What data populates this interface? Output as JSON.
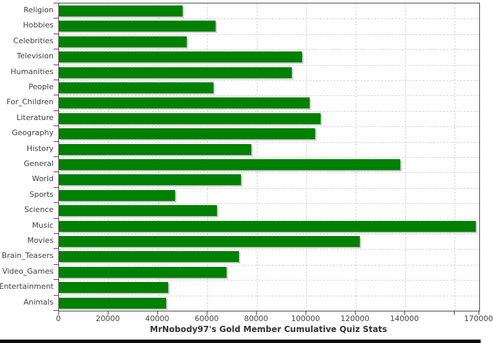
{
  "chart_data": {
    "type": "bar",
    "orientation": "horizontal",
    "title": "MrNobody97's Gold Member Cumulative Quiz Stats",
    "categories": [
      "Religion",
      "Hobbies",
      "Celebrities",
      "Television",
      "Humanities",
      "People",
      "For_Children",
      "Literature",
      "Geography",
      "History",
      "General",
      "World",
      "Sports",
      "Science",
      "Music",
      "Movies",
      "Brain_Teasers",
      "Video_Games",
      "Entertainment",
      "Animals"
    ],
    "values": [
      50000,
      63200,
      51600,
      98400,
      94200,
      62600,
      101300,
      105800,
      103700,
      77800,
      138100,
      73700,
      47000,
      63900,
      168600,
      121800,
      72800,
      67900,
      44100,
      43200
    ],
    "xlabel": "",
    "ylabel": "",
    "xlim": [
      0,
      170000
    ],
    "x_ticks": [
      {
        "value": 0,
        "label": "0"
      },
      {
        "value": 20000,
        "label": "20000"
      },
      {
        "value": 40000,
        "label": "40000"
      },
      {
        "value": 60000,
        "label": "60000"
      },
      {
        "value": 80000,
        "label": "80000"
      },
      {
        "value": 100000,
        "label": "100000"
      },
      {
        "value": 120000,
        "label": "120000"
      },
      {
        "value": 140000,
        "label": "140000"
      },
      {
        "value": 160000,
        "label": ""
      },
      {
        "value": 170000,
        "label": "170000"
      }
    ],
    "legend": "none",
    "grid": "dashed",
    "bar_color": "#008000",
    "bar_shadow_color": "#cccccc",
    "grid_color": "#d2d6d6",
    "axis_color": "#4a4a4a",
    "label_color": "#3f3f3f",
    "title_color": "#333333"
  }
}
